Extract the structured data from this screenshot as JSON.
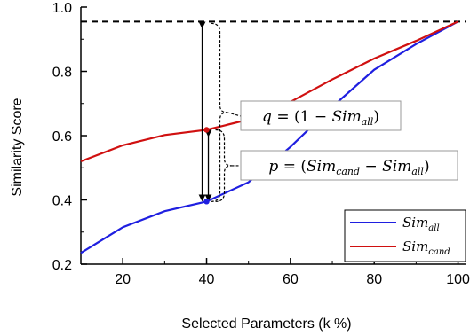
{
  "chart_data": {
    "type": "line",
    "xlabel": "Selected Parameters (k %)",
    "ylabel": "Similarity Score",
    "xlim": [
      10,
      102
    ],
    "ylim": [
      0.2,
      1.0
    ],
    "xticks": [
      20,
      40,
      60,
      80,
      100
    ],
    "yticks": [
      0.2,
      0.4,
      0.6,
      0.8,
      1.0
    ],
    "xtick_labels": [
      "20",
      "40",
      "60",
      "80",
      "100"
    ],
    "ytick_labels": [
      "0.2",
      "0.4",
      "0.6",
      "0.8",
      "1.0"
    ],
    "grid": false,
    "legend_position": "bottom-right",
    "reference_line": {
      "y": 0.955,
      "style": "dashed"
    },
    "series": [
      {
        "name": "Sim_all",
        "color": "#1f1fe0",
        "x": [
          10,
          20,
          30,
          40,
          50,
          60,
          70,
          80,
          90,
          100
        ],
        "y": [
          0.235,
          0.315,
          0.365,
          0.395,
          0.455,
          0.565,
          0.69,
          0.805,
          0.885,
          0.955
        ]
      },
      {
        "name": "Sim_cand",
        "color": "#d01010",
        "x": [
          10,
          20,
          30,
          40,
          50,
          60,
          70,
          80,
          90,
          100
        ],
        "y": [
          0.52,
          0.57,
          0.602,
          0.618,
          0.65,
          0.705,
          0.775,
          0.84,
          0.895,
          0.955
        ]
      }
    ],
    "annotations": [
      {
        "text": "q = (1 − Sim_all)",
        "x": 40,
        "y_from": 0.395,
        "y_to": 0.955
      },
      {
        "text": "p = (Sim_cand − Sim_all)",
        "x": 40,
        "y_from": 0.395,
        "y_to": 0.618
      }
    ]
  },
  "labels": {
    "legend_all": "Sim_all",
    "legend_cand": "Sim_cand",
    "ann_q": "q = (1 − Sim_all)",
    "ann_p": "p = (Sim_cand − Sim_all)"
  }
}
